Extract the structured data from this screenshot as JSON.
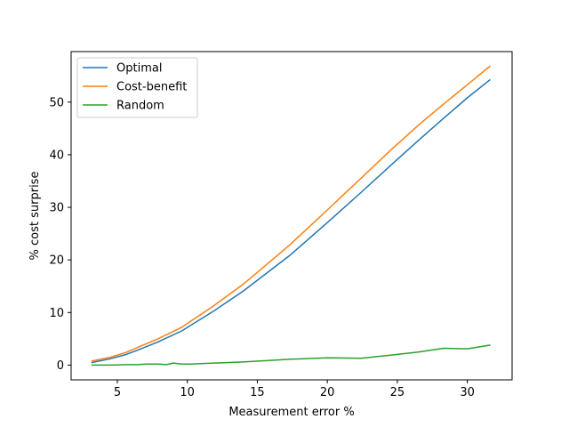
{
  "chart_data": {
    "type": "line",
    "title": "",
    "xlabel": "Measurement error %",
    "ylabel": "% cost surprise",
    "xlim": [
      1.7,
      33.2
    ],
    "ylim": [
      -2.8,
      59.6
    ],
    "xticks": [
      5,
      10,
      15,
      20,
      25,
      30
    ],
    "yticks": [
      0,
      10,
      20,
      30,
      40,
      50
    ],
    "grid": false,
    "legend_position": "top-left",
    "series": [
      {
        "name": "Optimal",
        "color": "#1f77b4",
        "x": [
          3.2,
          4.5,
          5.6,
          6.4,
          7.9,
          9.6,
          11.9,
          14.0,
          17.3,
          20.0,
          22.4,
          24.5,
          26.5,
          28.3,
          30.0,
          31.6
        ],
        "y": [
          0.5,
          1.2,
          2.0,
          2.8,
          4.4,
          6.5,
          10.3,
          14.1,
          20.8,
          27.1,
          32.8,
          37.9,
          42.7,
          46.9,
          50.8,
          54.2
        ]
      },
      {
        "name": "Cost-benefit",
        "color": "#ff7f0e",
        "x": [
          3.2,
          4.5,
          5.6,
          6.4,
          7.9,
          9.6,
          11.9,
          14.0,
          17.3,
          20.0,
          22.4,
          24.5,
          26.5,
          28.3,
          30.0,
          31.6
        ],
        "y": [
          0.8,
          1.5,
          2.4,
          3.3,
          5.0,
          7.2,
          11.3,
          15.4,
          22.8,
          29.5,
          35.5,
          40.8,
          45.6,
          49.6,
          53.3,
          56.8
        ]
      },
      {
        "name": "Random",
        "color": "#2ca02c",
        "x": [
          3.2,
          4.5,
          5.6,
          6.4,
          7.1,
          7.9,
          8.5,
          9.0,
          9.6,
          10.2,
          11.9,
          14.0,
          17.3,
          20.0,
          22.4,
          24.5,
          26.5,
          28.3,
          30.0,
          31.6
        ],
        "y": [
          0.0,
          0.0,
          0.1,
          0.1,
          0.2,
          0.2,
          0.1,
          0.4,
          0.2,
          0.2,
          0.4,
          0.6,
          1.1,
          1.4,
          1.3,
          1.9,
          2.5,
          3.2,
          3.1,
          3.8
        ]
      }
    ]
  }
}
